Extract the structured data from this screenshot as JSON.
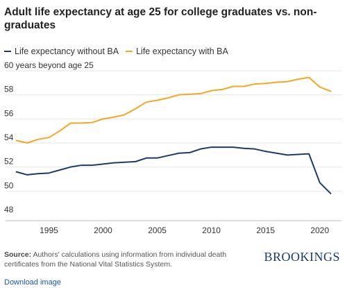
{
  "chart_data": {
    "type": "line",
    "title": "Adult life expectancy at age 25 for college graduates vs. non-graduates",
    "ylabel": "60 years beyond age 25",
    "xlim": [
      1991,
      2022
    ],
    "ylim": [
      48,
      60
    ],
    "xticks": [
      1995,
      2000,
      2005,
      2010,
      2015,
      2020
    ],
    "yticks": [
      48,
      50,
      52,
      54,
      56,
      58
    ],
    "grid": true,
    "legend_position": "top-left",
    "series": [
      {
        "name": "Life expectancy without BA",
        "color": "#1b3a6b",
        "x": [
          1992,
          1993,
          1994,
          1995,
          1996,
          1997,
          1998,
          1999,
          2000,
          2001,
          2002,
          2003,
          2004,
          2005,
          2006,
          2007,
          2008,
          2009,
          2010,
          2011,
          2012,
          2013,
          2014,
          2015,
          2016,
          2017,
          2018,
          2019,
          2020,
          2021
        ],
        "values": [
          51.6,
          51.35,
          51.45,
          51.5,
          51.75,
          52.0,
          52.15,
          52.15,
          52.25,
          52.35,
          52.4,
          52.45,
          52.75,
          52.75,
          52.95,
          53.15,
          53.2,
          53.5,
          53.65,
          53.65,
          53.65,
          53.55,
          53.5,
          53.3,
          53.15,
          53.0,
          53.05,
          53.1,
          50.7,
          49.8
        ]
      },
      {
        "name": "Life expectancy with BA",
        "color": "#f5a623",
        "x": [
          1992,
          1993,
          1994,
          1995,
          1996,
          1997,
          1998,
          1999,
          2000,
          2001,
          2002,
          2003,
          2004,
          2005,
          2006,
          2007,
          2008,
          2009,
          2010,
          2011,
          2012,
          2013,
          2014,
          2015,
          2016,
          2017,
          2018,
          2019,
          2020,
          2021
        ],
        "values": [
          54.2,
          54.0,
          54.3,
          54.45,
          55.0,
          55.65,
          55.65,
          55.7,
          56.0,
          56.15,
          56.35,
          56.85,
          57.4,
          57.55,
          57.75,
          58.0,
          58.05,
          58.1,
          58.35,
          58.45,
          58.7,
          58.7,
          58.9,
          58.95,
          59.05,
          59.1,
          59.3,
          59.45,
          58.65,
          58.3
        ]
      }
    ]
  },
  "footer": {
    "source_label": "Source:",
    "source_text": "Authors' calculations using information from individual death certificates from the National Vital Statistics System.",
    "brand": "BROOKINGS",
    "download_label": "Download image"
  },
  "colors": {
    "axis_text": "#333333",
    "grid": "#e6e6e6",
    "baseline": "#bbbbbb"
  }
}
